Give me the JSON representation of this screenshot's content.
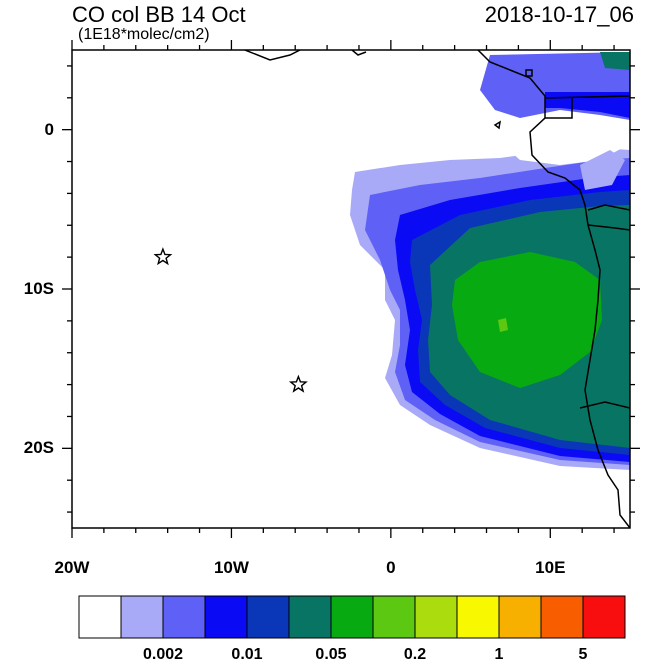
{
  "header": {
    "title_left": "CO col BB 14 Oct",
    "units": "(1E18*molec/cm2)",
    "title_right": "2018-10-17_06"
  },
  "map": {
    "lon_range": [
      -20,
      15
    ],
    "lat_range": [
      -25,
      5
    ],
    "x_ticks": [
      {
        "value": -20,
        "label": "20W"
      },
      {
        "value": -10,
        "label": "10W"
      },
      {
        "value": 0,
        "label": "0"
      },
      {
        "value": 10,
        "label": "10E"
      }
    ],
    "y_ticks": [
      {
        "value": 0,
        "label": "0"
      },
      {
        "value": -10,
        "label": "10S"
      },
      {
        "value": -20,
        "label": "20S"
      }
    ],
    "markers": [
      {
        "name": "star-marker-1",
        "lon": -14.3,
        "lat": -8.0
      },
      {
        "name": "star-marker-2",
        "lon": -5.8,
        "lat": -16.0
      }
    ]
  },
  "colorbar": {
    "colors": [
      "#ffffff",
      "#a8aaf8",
      "#5e60f6",
      "#0a0af4",
      "#0a36b8",
      "#087464",
      "#08aa12",
      "#5cc812",
      "#aadc0e",
      "#f8f800",
      "#f8b000",
      "#f85e00",
      "#f80e0e"
    ],
    "labels": [
      {
        "text": "0.002",
        "boundary": 2
      },
      {
        "text": "0.01",
        "boundary": 4
      },
      {
        "text": "0.05",
        "boundary": 6
      },
      {
        "text": "0.2",
        "boundary": 8
      },
      {
        "text": "1",
        "boundary": 10
      },
      {
        "text": "5",
        "boundary": 12
      }
    ]
  }
}
